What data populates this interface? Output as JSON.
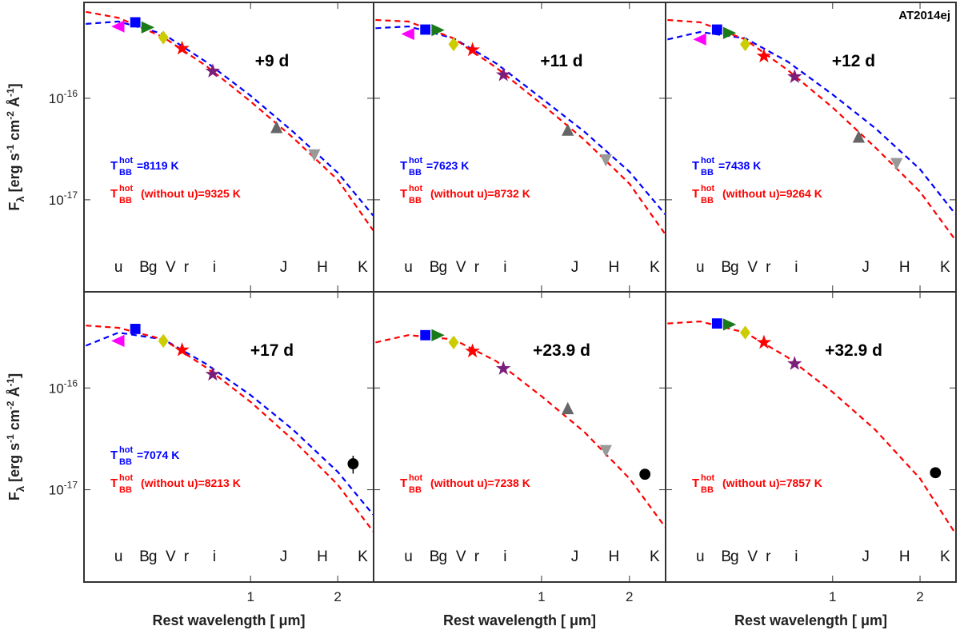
{
  "chart_data": {
    "type": "scatter",
    "title": "AT2014ej",
    "log_x": true,
    "log_y": true,
    "xlabel": "Rest wavelength [ μm]",
    "ylabel_parts": [
      {
        "text": "F"
      },
      {
        "text": "λ",
        "shift": "sub"
      },
      {
        "text": " [erg s"
      },
      {
        "text": "-1",
        "shift": "sup"
      },
      {
        "text": " cm"
      },
      {
        "text": "-2",
        "shift": "sup"
      },
      {
        "text": " Å"
      },
      {
        "text": "-1",
        "shift": "sup"
      },
      {
        "text": "]"
      }
    ],
    "xlim": [
      0.266,
      2.66
    ],
    "ylim": [
      1.24e-18,
      8.8e-16
    ],
    "xticks": [
      1,
      2
    ],
    "yticks": [
      {
        "value": 1e-16,
        "label": {
          "base": "10",
          "exp": "-16"
        }
      },
      {
        "value": 1e-17,
        "label": {
          "base": "10",
          "exp": "-17"
        }
      }
    ],
    "band_labels": [
      {
        "label": "u",
        "x": 0.35
      },
      {
        "label": "B",
        "x": 0.43
      },
      {
        "label": "g",
        "x": 0.46
      },
      {
        "label": "V",
        "x": 0.53
      },
      {
        "label": "r",
        "x": 0.6
      },
      {
        "label": "i",
        "x": 0.75
      },
      {
        "label": "J",
        "x": 1.3
      },
      {
        "label": "H",
        "x": 1.77
      },
      {
        "label": "K",
        "x": 2.44
      }
    ],
    "points_x": [
      0.35,
      0.4,
      0.44,
      0.5,
      0.58,
      0.74,
      1.23,
      1.66,
      2.26
    ],
    "point_colors": [
      "#ff00ff",
      "#0000ff",
      "#1a7a1a",
      "#cccc00",
      "#ff0000",
      "#7b1f7b",
      "#666666",
      "#999999",
      "#000000"
    ],
    "point_markers": [
      "triangle-left",
      "square",
      "triangle-right",
      "diamond",
      "star",
      "star",
      "triangle-up",
      "triangle-down",
      "circle"
    ],
    "curve_x": [
      0.27,
      0.35,
      0.5,
      0.7,
      1.0,
      1.4,
      2.0,
      2.65
    ],
    "panels": [
      {
        "label": "+9 d",
        "points": [
          5.1e-16,
          5.6e-16,
          5e-16,
          3.97e-16,
          3.1e-16,
          1.85e-16,
          5.1e-17,
          2.8e-17,
          null
        ],
        "curves": [
          {
            "color": "#0000ff",
            "values": [
              5.4e-16,
              5.7e-16,
              4.3e-16,
              2.3e-16,
              1.06e-16,
              4.7e-17,
              1.85e-17,
              7e-18
            ],
            "label": {
              "base": "T",
              "sup": "hot",
              "sub": "BB",
              "text": "=8119 K"
            }
          },
          {
            "color": "#ff0000",
            "values": [
              7.1e-16,
              6.2e-16,
              4e-16,
              2.1e-16,
              9.3e-17,
              4.1e-17,
              1.57e-17,
              5e-18
            ],
            "label": {
              "base": "T",
              "sup": "hot",
              "sub": "BB",
              "text": "(without u)=9325 K"
            }
          }
        ]
      },
      {
        "label": "+11 d",
        "points": [
          4.3e-16,
          4.75e-16,
          4.7e-16,
          3.4e-16,
          3e-16,
          1.7e-16,
          4.8e-17,
          2.5e-17,
          null
        ],
        "curves": [
          {
            "color": "#0000ff",
            "values": [
              4.9e-16,
              5.1e-16,
              3.9e-16,
              2.2e-16,
              1e-16,
              4.7e-17,
              1.89e-17,
              7.2e-18
            ],
            "label": {
              "base": "T",
              "sup": "hot",
              "sub": "BB",
              "text": "=7623 K"
            }
          },
          {
            "color": "#ff0000",
            "values": [
              5.9e-16,
              5.7e-16,
              3.9e-16,
              2e-16,
              8.8e-17,
              3.9e-17,
              1.44e-17,
              4.6e-18
            ],
            "label": {
              "base": "T",
              "sup": "hot",
              "sub": "BB",
              "text": "(without u)=8732 K"
            }
          }
        ]
      },
      {
        "label": "+12 d",
        "points": [
          3.8e-16,
          4.75e-16,
          4.4e-16,
          3.4e-16,
          2.6e-16,
          1.63e-16,
          4.1e-17,
          2.3e-17,
          null
        ],
        "curves": [
          {
            "color": "#0000ff",
            "values": [
              3.8e-16,
              4.5e-16,
              3.9e-16,
              2.3e-16,
              1.09e-16,
              5.1e-17,
              2e-17,
              7.2e-18
            ],
            "label": {
              "base": "T",
              "sup": "hot",
              "sub": "BB",
              "text": "=7438 K"
            }
          },
          {
            "color": "#ff0000",
            "values": [
              5.9e-16,
              5.6e-16,
              3.8e-16,
              1.9e-16,
              8.1e-17,
              3.3e-17,
              1.2e-17,
              4e-18
            ],
            "label": {
              "base": "T",
              "sup": "hot",
              "sub": "BB",
              "text": "(without u)=9264 K"
            }
          }
        ]
      },
      {
        "label": "+17 d",
        "points": [
          2.9e-16,
          3.8e-16,
          null,
          2.9e-16,
          2.36e-16,
          1.36e-16,
          null,
          null,
          1.8e-17
        ],
        "errors": [
          null,
          null,
          null,
          null,
          null,
          null,
          null,
          null,
          3.6e-18
        ],
        "curves": [
          {
            "color": "#0000ff",
            "values": [
              2.6e-16,
              3.5e-16,
              3e-16,
              1.73e-16,
              8.5e-17,
              3.9e-17,
              1.5e-17,
              5.7e-18
            ],
            "label": {
              "base": "T",
              "sup": "hot",
              "sub": "BB",
              "text": "=7074 K"
            }
          },
          {
            "color": "#ff0000",
            "values": [
              4.1e-16,
              3.9e-16,
              3e-16,
              1.6e-16,
              7.3e-17,
              3.1e-17,
              1.12e-17,
              3.9e-18
            ],
            "label": {
              "base": "T",
              "sup": "hot",
              "sub": "BB",
              "text": "(without u)=8213 K"
            }
          }
        ]
      },
      {
        "label": "+23.9 d",
        "points": [
          null,
          3.3e-16,
          3.3e-16,
          2.8e-16,
          2.3e-16,
          1.55e-16,
          6.2e-17,
          2.45e-17,
          1.42e-17
        ],
        "curves": [
          {
            "color": "#ff0000",
            "values": [
              2.8e-16,
              3.3e-16,
              3e-16,
              1.83e-16,
              8.3e-17,
              3.7e-17,
              1.29e-17,
              4.3e-18
            ],
            "label": {
              "base": "T",
              "sup": "hot",
              "sub": "BB",
              "text": "(without u)=7238 K"
            }
          }
        ]
      },
      {
        "label": "+32.9 d",
        "points": [
          null,
          4.3e-16,
          4.2e-16,
          3.5e-16,
          2.8e-16,
          1.73e-16,
          null,
          null,
          1.47e-17
        ],
        "curves": [
          {
            "color": "#ff0000",
            "values": [
              4.3e-16,
              4.5e-16,
              3.5e-16,
              2e-16,
              9.1e-17,
              3.9e-17,
              1.29e-17,
              3.7e-18
            ],
            "label": {
              "base": "T",
              "sup": "hot",
              "sub": "BB",
              "text": "(without u)=7857 K"
            }
          }
        ]
      }
    ]
  }
}
